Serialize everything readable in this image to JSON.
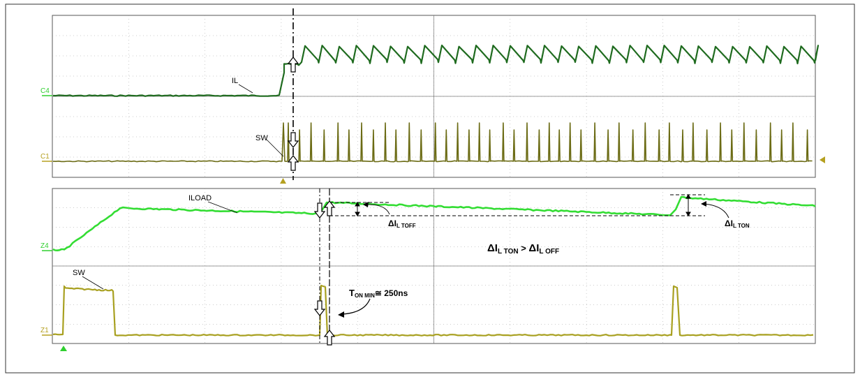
{
  "chart_data": [
    {
      "type": "line",
      "panel": "top",
      "grid": true,
      "channels": [
        {
          "name": "C4",
          "signal": "IL",
          "color": "#1f6b1f"
        },
        {
          "name": "C1",
          "signal": "SW",
          "color": "#6b6b14"
        }
      ],
      "series": [
        {
          "name": "IL",
          "description": "flat until the trigger, then step up to a sawtooth ripple"
        },
        {
          "name": "SW",
          "description": "flat until the trigger, then narrow periodic spikes"
        }
      ]
    },
    {
      "type": "line",
      "panel": "bottom",
      "grid": true,
      "channels": [
        {
          "name": "Z4",
          "signal": "ILOAD",
          "color": "#33dd33"
        },
        {
          "name": "Z1",
          "signal": "SW",
          "color": "#a8a020"
        }
      ],
      "series": [
        {
          "name": "ILOAD",
          "description": "ramp up then slowly decaying, steps up at the on-pulses"
        },
        {
          "name": "SW",
          "description": "wide on-pulse at start, minimum on-time pulses later"
        }
      ]
    }
  ],
  "labels": {
    "c4": "C4",
    "c1": "C1",
    "z4": "Z4",
    "z1": "Z1",
    "il": "IL",
    "sw_top": "SW",
    "iload": "ILOAD",
    "sw_bottom": "SW",
    "delta_toff_main": "ΔI",
    "delta_toff_sub": "L TOFF",
    "delta_ton_main": "ΔI",
    "delta_ton_sub": "L TON",
    "relation_a_main": "ΔI",
    "relation_a_sub": "L TON",
    "relation_op": " > ",
    "relation_b_main": "ΔI",
    "relation_b_sub": "L OFF",
    "ton_main": "T",
    "ton_sub": "ON MIN",
    "ton_value": "≅ 250ns"
  },
  "colors": {
    "il": "#1f6b1f",
    "sw_top": "#6b6b14",
    "iload": "#33dd33",
    "sw_bottom": "#a8a020",
    "grid": "#9a9a9a",
    "frame": "#555555"
  }
}
